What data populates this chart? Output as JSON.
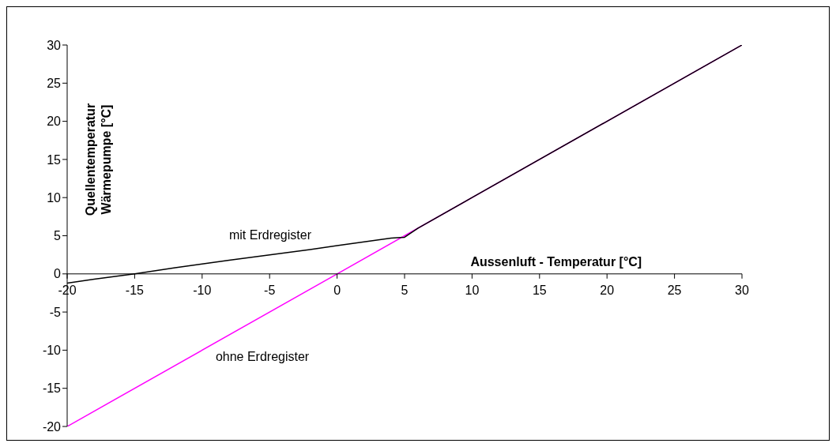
{
  "chart_data": {
    "type": "line",
    "xlabel": "Aussenluft - Temperatur [°C]",
    "ylabel": "Quellentemperatur Wärmepumpe [°C]",
    "xlim": [
      -20,
      30
    ],
    "xticks": [
      -20,
      -15,
      -10,
      -5,
      0,
      5,
      10,
      15,
      20,
      25,
      30
    ],
    "ylim": [
      -20,
      30
    ],
    "yticks": [
      -20,
      -15,
      -10,
      -5,
      0,
      5,
      10,
      15,
      20,
      25,
      30
    ],
    "marker": "none",
    "line_style": "solid",
    "series": [
      {
        "color": "#ff00ff",
        "x": [
          -20,
          0,
          5,
          30
        ],
        "values": [
          -20,
          0,
          5,
          30
        ]
      },
      {
        "color": "#000000",
        "x": [
          -20,
          -18,
          -15,
          -12,
          -10,
          -8,
          -5,
          -2,
          0,
          2,
          4,
          5,
          6,
          10,
          20,
          30
        ],
        "values": [
          -1.2,
          -0.7,
          0,
          0.8,
          1.3,
          1.8,
          2.5,
          3.2,
          3.7,
          4.2,
          4.7,
          4.8,
          6,
          10,
          20,
          30
        ]
      }
    ],
    "annotations": [
      "mit Erdregister",
      "ohne Erdregister"
    ]
  }
}
